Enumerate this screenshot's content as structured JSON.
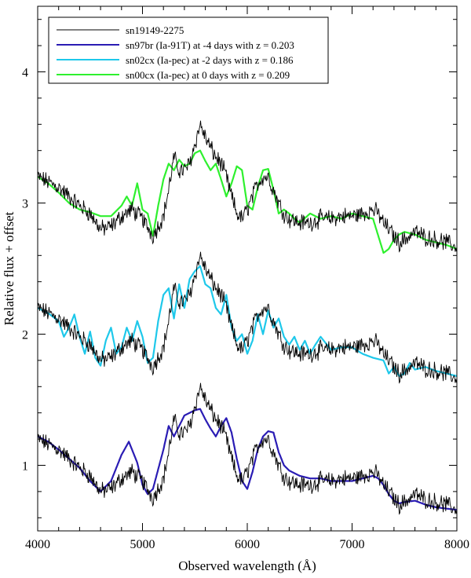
{
  "chart_data": {
    "type": "line",
    "title": "",
    "xlabel": "Observed wavelength (Å)",
    "ylabel": "Relative flux + offset",
    "xlim": [
      4000,
      8000
    ],
    "ylim": [
      0.5,
      4.5
    ],
    "x_ticks": [
      4000,
      5000,
      6000,
      7000,
      8000
    ],
    "y_ticks": [
      1,
      2,
      3,
      4
    ],
    "grid": false,
    "legend_position": "top-left (boxed)",
    "series": [
      {
        "name": "sn19149-2275",
        "color": "#000000",
        "note_offsets": [
          0,
          1,
          2
        ],
        "x": [
          4000,
          4100,
          4200,
          4300,
          4400,
          4500,
          4600,
          4700,
          4800,
          4900,
          5000,
          5100,
          5200,
          5250,
          5300,
          5350,
          5400,
          5450,
          5500,
          5550,
          5600,
          5650,
          5700,
          5750,
          5800,
          5850,
          5900,
          5950,
          6000,
          6050,
          6100,
          6150,
          6200,
          6250,
          6300,
          6350,
          6400,
          6500,
          6600,
          6700,
          6800,
          6900,
          7000,
          7100,
          7200,
          7250,
          7300,
          7350,
          7400,
          7450,
          7500,
          7600,
          7700,
          7800,
          7900,
          8000
        ],
        "values_offset2": [
          3.2,
          3.16,
          3.12,
          3.05,
          2.98,
          2.92,
          2.8,
          2.82,
          2.9,
          2.95,
          2.88,
          2.75,
          2.9,
          3.1,
          3.35,
          3.25,
          3.25,
          3.3,
          3.45,
          3.6,
          3.5,
          3.42,
          3.35,
          3.3,
          3.2,
          3.05,
          2.92,
          2.88,
          2.95,
          3.05,
          3.15,
          3.2,
          3.2,
          3.1,
          3.0,
          2.92,
          2.88,
          2.85,
          2.85,
          2.88,
          2.88,
          2.9,
          2.9,
          2.92,
          2.95,
          2.92,
          2.85,
          2.8,
          2.75,
          2.7,
          2.72,
          2.78,
          2.74,
          2.72,
          2.7,
          2.66
        ]
      },
      {
        "name": "sn97br (Ia-91T) at -4 days with z = 0.203",
        "color": "#2a1cb4",
        "x": [
          4000,
          4100,
          4200,
          4300,
          4400,
          4500,
          4600,
          4700,
          4800,
          4870,
          4950,
          5000,
          5050,
          5100,
          5200,
          5250,
          5300,
          5350,
          5400,
          5450,
          5500,
          5550,
          5600,
          5650,
          5700,
          5750,
          5800,
          5850,
          5900,
          5950,
          6000,
          6050,
          6100,
          6150,
          6200,
          6250,
          6300,
          6350,
          6400,
          6500,
          6600,
          6700,
          6800,
          6900,
          7000,
          7100,
          7200,
          7250,
          7300,
          7350,
          7400,
          7450,
          7500,
          7600,
          7700,
          7800,
          7900,
          8000
        ],
        "values": [
          1.22,
          1.18,
          1.12,
          1.05,
          0.98,
          0.88,
          0.8,
          0.88,
          1.08,
          1.18,
          1.02,
          0.85,
          0.78,
          0.82,
          1.12,
          1.3,
          1.22,
          1.3,
          1.38,
          1.4,
          1.42,
          1.43,
          1.35,
          1.28,
          1.22,
          1.3,
          1.36,
          1.25,
          1.05,
          0.88,
          0.82,
          0.95,
          1.12,
          1.22,
          1.26,
          1.25,
          1.1,
          1.0,
          0.96,
          0.92,
          0.9,
          0.9,
          0.88,
          0.88,
          0.88,
          0.9,
          0.92,
          0.9,
          0.85,
          0.78,
          0.73,
          0.71,
          0.72,
          0.73,
          0.7,
          0.68,
          0.67,
          0.66
        ]
      },
      {
        "name": "sn02cx (Ia-pec) at -2 days with z = 0.186",
        "color": "#1ec8ea",
        "x": [
          4000,
          4100,
          4200,
          4250,
          4300,
          4350,
          4400,
          4450,
          4500,
          4550,
          4600,
          4650,
          4700,
          4750,
          4800,
          4850,
          4900,
          4950,
          5000,
          5050,
          5100,
          5150,
          5200,
          5250,
          5300,
          5350,
          5400,
          5450,
          5500,
          5550,
          5600,
          5650,
          5700,
          5750,
          5800,
          5850,
          5900,
          5950,
          6000,
          6050,
          6100,
          6150,
          6200,
          6250,
          6300,
          6350,
          6400,
          6450,
          6500,
          6550,
          6600,
          6650,
          6700,
          6800,
          6900,
          7000,
          7100,
          7200,
          7300,
          7350,
          7400,
          7450,
          7500,
          7550,
          7600,
          7700,
          7800,
          7900,
          8000
        ],
        "values": [
          2.2,
          2.16,
          2.1,
          1.98,
          2.05,
          2.15,
          1.98,
          1.85,
          2.02,
          1.82,
          1.76,
          1.95,
          2.05,
          1.85,
          1.9,
          2.05,
          1.95,
          2.1,
          1.98,
          1.78,
          1.82,
          2.1,
          2.3,
          2.35,
          2.12,
          2.38,
          2.2,
          2.42,
          2.48,
          2.52,
          2.38,
          2.35,
          2.2,
          2.15,
          2.3,
          2.05,
          1.95,
          2.0,
          1.85,
          1.95,
          2.15,
          2.0,
          2.18,
          2.05,
          2.12,
          1.98,
          1.92,
          1.98,
          1.88,
          1.95,
          1.85,
          1.92,
          1.98,
          1.88,
          1.9,
          1.9,
          1.85,
          1.82,
          1.8,
          1.7,
          1.75,
          1.68,
          1.7,
          1.78,
          1.73,
          1.75,
          1.72,
          1.7,
          1.68
        ]
      },
      {
        "name": "sn00cx (Ia-pec) at 0 days with z = 0.209",
        "color": "#2ef02e",
        "x": [
          4000,
          4100,
          4200,
          4300,
          4400,
          4500,
          4600,
          4700,
          4800,
          4850,
          4900,
          4950,
          5000,
          5050,
          5100,
          5150,
          5200,
          5250,
          5300,
          5350,
          5400,
          5450,
          5500,
          5550,
          5600,
          5650,
          5700,
          5750,
          5800,
          5850,
          5900,
          5950,
          6000,
          6050,
          6100,
          6150,
          6200,
          6250,
          6300,
          6350,
          6400,
          6450,
          6500,
          6600,
          6700,
          6800,
          6900,
          7000,
          7100,
          7200,
          7250,
          7300,
          7350,
          7400,
          7450,
          7500,
          7600,
          7700,
          7800,
          7900,
          8000
        ],
        "values": [
          3.2,
          3.15,
          3.08,
          3.0,
          2.95,
          2.93,
          2.9,
          2.9,
          2.98,
          3.05,
          2.98,
          3.15,
          2.95,
          2.92,
          2.75,
          2.98,
          3.18,
          3.3,
          3.25,
          3.33,
          3.28,
          3.3,
          3.38,
          3.4,
          3.32,
          3.25,
          3.3,
          3.18,
          3.05,
          3.15,
          3.28,
          3.25,
          2.98,
          2.95,
          3.12,
          3.25,
          3.26,
          3.1,
          2.92,
          2.95,
          2.92,
          2.88,
          2.85,
          2.92,
          2.88,
          2.9,
          2.88,
          2.92,
          2.9,
          2.88,
          2.75,
          2.62,
          2.65,
          2.72,
          2.76,
          2.78,
          2.76,
          2.72,
          2.7,
          2.68,
          2.65
        ]
      }
    ]
  }
}
